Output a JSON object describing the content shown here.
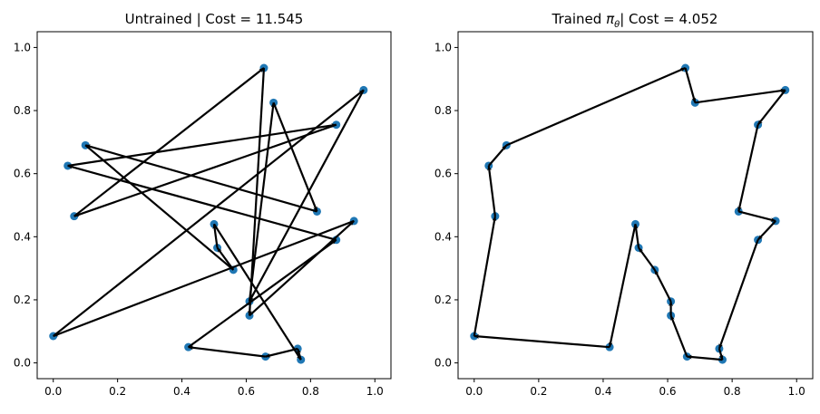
{
  "chart_data": [
    {
      "type": "scatter",
      "title": "Untrained | Cost = 11.545",
      "xlim": [
        -0.05,
        1.05
      ],
      "ylim": [
        -0.05,
        1.05
      ],
      "xticks": [
        "0.0",
        "0.2",
        "0.4",
        "0.6",
        "0.8",
        "1.0"
      ],
      "yticks": [
        "0.0",
        "0.2",
        "0.4",
        "0.6",
        "0.8",
        "1.0"
      ],
      "grid": false,
      "point_color": "#1f77b4",
      "route_color": "#000000",
      "tour": [
        [
          0.42,
          0.05
        ],
        [
          0.88,
          0.39
        ],
        [
          0.045,
          0.625
        ],
        [
          0.88,
          0.755
        ],
        [
          0.065,
          0.465
        ],
        [
          0.655,
          0.935
        ],
        [
          0.61,
          0.15
        ],
        [
          0.935,
          0.45
        ],
        [
          0.0,
          0.085
        ],
        [
          0.965,
          0.865
        ],
        [
          0.61,
          0.195
        ],
        [
          0.685,
          0.825
        ],
        [
          0.82,
          0.48
        ],
        [
          0.1,
          0.69
        ],
        [
          0.56,
          0.295
        ],
        [
          0.51,
          0.365
        ],
        [
          0.5,
          0.44
        ],
        [
          0.77,
          0.01
        ],
        [
          0.76,
          0.045
        ],
        [
          0.66,
          0.02
        ]
      ]
    },
    {
      "type": "scatter",
      "title_prefix": "Trained ",
      "title_symbol": "π",
      "title_subscript": "θ",
      "title_suffix": "| Cost = 4.052",
      "xlim": [
        -0.05,
        1.05
      ],
      "ylim": [
        -0.05,
        1.05
      ],
      "xticks": [
        "0.0",
        "0.2",
        "0.4",
        "0.6",
        "0.8",
        "1.0"
      ],
      "yticks": [
        "0.0",
        "0.2",
        "0.4",
        "0.6",
        "0.8",
        "1.0"
      ],
      "grid": false,
      "point_color": "#1f77b4",
      "route_color": "#000000",
      "tour": [
        [
          0.0,
          0.085
        ],
        [
          0.065,
          0.465
        ],
        [
          0.045,
          0.625
        ],
        [
          0.1,
          0.69
        ],
        [
          0.655,
          0.935
        ],
        [
          0.685,
          0.825
        ],
        [
          0.965,
          0.865
        ],
        [
          0.88,
          0.755
        ],
        [
          0.82,
          0.48
        ],
        [
          0.935,
          0.45
        ],
        [
          0.88,
          0.39
        ],
        [
          0.76,
          0.045
        ],
        [
          0.77,
          0.01
        ],
        [
          0.66,
          0.02
        ],
        [
          0.61,
          0.15
        ],
        [
          0.61,
          0.195
        ],
        [
          0.56,
          0.295
        ],
        [
          0.51,
          0.365
        ],
        [
          0.5,
          0.44
        ],
        [
          0.42,
          0.05
        ]
      ]
    }
  ]
}
